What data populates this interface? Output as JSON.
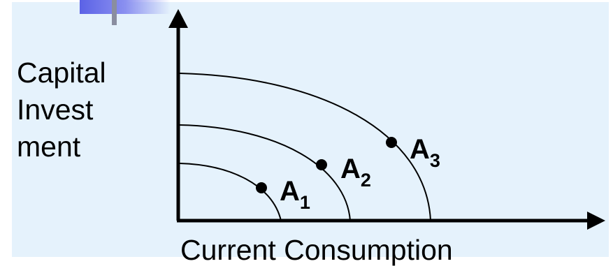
{
  "axes": {
    "y_label_lines": [
      "Capital",
      "Invest",
      "ment"
    ],
    "x_label": "Current Consumption"
  },
  "curves": [
    {
      "name": "A",
      "sub": "1"
    },
    {
      "name": "A",
      "sub": "2"
    },
    {
      "name": "A",
      "sub": "3"
    }
  ],
  "colors": {
    "background": "#e5f2fc",
    "ink": "#000000",
    "accent": "#5b62e6"
  }
}
